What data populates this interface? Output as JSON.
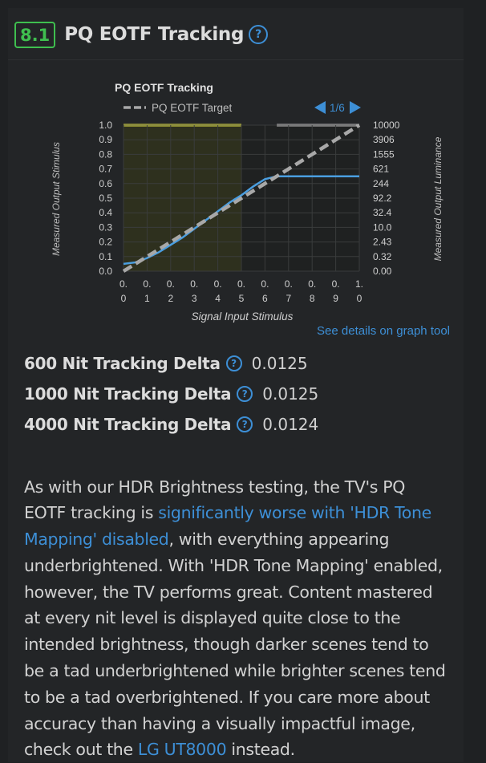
{
  "section": {
    "number": "8.1",
    "title": "PQ EOTF Tracking",
    "help_icon": "question-circle-icon"
  },
  "chart": {
    "title": "PQ EOTF Tracking",
    "legend_label": "PQ EOTF Target",
    "pager": "1/6",
    "left_axis_label": "Measured Output Stimulus",
    "right_axis_label": "Measured Output Luminance",
    "x_axis_label": "Signal Input Stimulus",
    "colors": {
      "background": "#1f2121",
      "dark_region": "#2e301e",
      "target": "#a8a8a8",
      "measured": "#4a9ee0",
      "yellow_bar": "#e0e040",
      "grey_bar": "#b8b8b8",
      "accent": "#3d8fd6"
    }
  },
  "chart_data": {
    "type": "line",
    "title": "PQ EOTF Tracking",
    "xlabel": "Signal Input Stimulus",
    "ylabel": "Measured Output Stimulus",
    "y2label": "Measured Output Luminance",
    "xlim": [
      0,
      1
    ],
    "ylim": [
      0,
      1
    ],
    "x_ticks": [
      [
        "0.",
        "0"
      ],
      [
        "0.",
        "1"
      ],
      [
        "0.",
        "2"
      ],
      [
        "0.",
        "3"
      ],
      [
        "0.",
        "4"
      ],
      [
        "0.",
        "5"
      ],
      [
        "0.",
        "6"
      ],
      [
        "0.",
        "7"
      ],
      [
        "0.",
        "8"
      ],
      [
        "0.",
        "9"
      ],
      [
        "1.",
        "0"
      ]
    ],
    "y_ticks": [
      "0.0",
      "0.1",
      "0.2",
      "0.3",
      "0.4",
      "0.5",
      "0.6",
      "0.7",
      "0.8",
      "0.9",
      "1.0"
    ],
    "y2_ticks": [
      "0.00",
      "0.32",
      "2.43",
      "10.0",
      "32.4",
      "92.2",
      "244",
      "621",
      "1555",
      "3906",
      "10000"
    ],
    "series": [
      {
        "name": "PQ EOTF Target",
        "style": "dashed",
        "x": [
          0,
          1
        ],
        "y": [
          0,
          1
        ]
      },
      {
        "style": "solid",
        "x": [
          0,
          0.05,
          0.1,
          0.15,
          0.2,
          0.25,
          0.3,
          0.35,
          0.4,
          0.45,
          0.5,
          0.55,
          0.6,
          0.65,
          0.7,
          0.75,
          0.8,
          0.85,
          0.9,
          0.95,
          1.0
        ],
        "y": [
          0.05,
          0.06,
          0.09,
          0.13,
          0.18,
          0.23,
          0.29,
          0.35,
          0.41,
          0.47,
          0.52,
          0.58,
          0.63,
          0.65,
          0.65,
          0.65,
          0.65,
          0.65,
          0.65,
          0.65,
          0.65
        ]
      }
    ],
    "regions": [
      {
        "from": 0,
        "to": 0.5,
        "bar": "yellow"
      },
      {
        "from": 0.65,
        "to": 1.0,
        "bar": "grey"
      }
    ]
  },
  "graph_link": "See details on graph tool",
  "deltas": [
    {
      "label": "600 Nit Tracking Delta",
      "value": "0.0125"
    },
    {
      "label": "1000 Nit Tracking Delta",
      "value": "0.0125"
    },
    {
      "label": "4000 Nit Tracking Delta",
      "value": "0.0124"
    }
  ],
  "paragraph": {
    "t1": "As with our HDR Brightness testing, the TV's PQ EOTF tracking is ",
    "link1": "significantly worse with 'HDR Tone Mapping' disabled",
    "t2": ", with everything appearing underbrightened. With 'HDR Tone Mapping' enabled, however, the TV performs great. Content mastered at every nit level is displayed quite close to the intended brightness, though darker scenes tend to be a tad underbrightened while brighter scenes tend to be a tad overbrightened. If you care more about accuracy than having a visually impactful image, check out the ",
    "link2": "LG UT8000",
    "t3": " instead."
  }
}
